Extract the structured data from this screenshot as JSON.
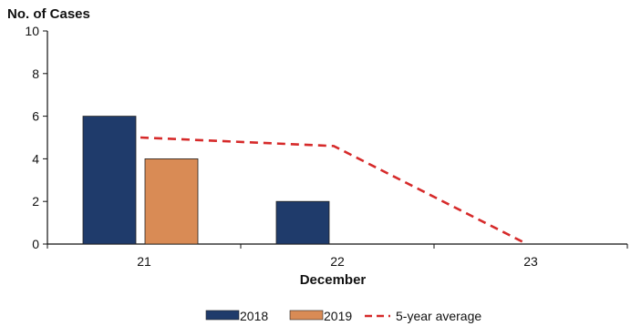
{
  "chart_data": {
    "type": "bar",
    "title": "",
    "ylabel": "No. of Cases",
    "xlabel": "December",
    "categories": [
      "21",
      "22",
      "23"
    ],
    "ylim": [
      0,
      10
    ],
    "yticks": [
      0,
      2,
      4,
      6,
      8,
      10
    ],
    "grid": false,
    "legend_position": "bottom",
    "series": [
      {
        "name": "2018",
        "type": "bar",
        "color": "#1f3b6b",
        "values": [
          6,
          2,
          0
        ]
      },
      {
        "name": "2019",
        "type": "bar",
        "color": "#d98b55",
        "values": [
          4,
          0,
          0
        ]
      },
      {
        "name": "5-year average",
        "type": "line",
        "style": "dashed",
        "color": "#d62a2a",
        "values": [
          5,
          4.6,
          0
        ]
      }
    ]
  }
}
